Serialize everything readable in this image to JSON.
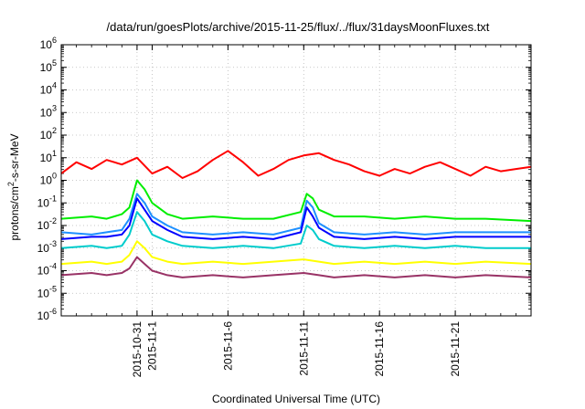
{
  "chart_data": {
    "type": "line",
    "title": "/data/run/goesPlots/archive/2015-11-25/flux/../flux/31daysMoonFluxes.txt",
    "xlabel": "Coordinated Universal Time (UTC)",
    "ylabel": {
      "base": "protons/cm",
      "sup": "2",
      "rest": "-s-sr-MeV"
    },
    "yscale": "log",
    "ylim_exp": [
      -6,
      6
    ],
    "y_ticks": [
      {
        "base": "10",
        "exp": "-6"
      },
      {
        "base": "10",
        "exp": "-5"
      },
      {
        "base": "10",
        "exp": "-4"
      },
      {
        "base": "10",
        "exp": "-3"
      },
      {
        "base": "10",
        "exp": "-2"
      },
      {
        "base": "10",
        "exp": "-1"
      },
      {
        "base": "10",
        "exp": "0"
      },
      {
        "base": "10",
        "exp": "1"
      },
      {
        "base": "10",
        "exp": "2"
      },
      {
        "base": "10",
        "exp": "3"
      },
      {
        "base": "10",
        "exp": "4"
      },
      {
        "base": "10",
        "exp": "5"
      },
      {
        "base": "10",
        "exp": "6"
      }
    ],
    "x_range_days": [
      0,
      31
    ],
    "x_ticks": [
      {
        "day": 5,
        "label": "2015-10-31"
      },
      {
        "day": 6,
        "label": "2015-11-1"
      },
      {
        "day": 11,
        "label": "2015-11-6"
      },
      {
        "day": 16,
        "label": "2015-11-11"
      },
      {
        "day": 21,
        "label": "2015-11-16"
      },
      {
        "day": 26,
        "label": "2015-11-21"
      }
    ],
    "grid": true,
    "series": [
      {
        "name": "red",
        "color": "#ff0000",
        "points": [
          [
            0,
            0.3
          ],
          [
            1,
            0.8
          ],
          [
            2,
            0.5
          ],
          [
            3,
            0.9
          ],
          [
            4,
            0.7
          ],
          [
            5,
            1.0
          ],
          [
            6,
            0.3
          ],
          [
            7,
            0.6
          ],
          [
            8,
            0.1
          ],
          [
            9,
            0.4
          ],
          [
            10,
            0.9
          ],
          [
            11,
            1.3
          ],
          [
            12,
            0.8
          ],
          [
            13,
            0.2
          ],
          [
            14,
            0.5
          ],
          [
            15,
            0.9
          ],
          [
            16,
            1.1
          ],
          [
            17,
            1.2
          ],
          [
            18,
            0.9
          ],
          [
            19,
            0.7
          ],
          [
            20,
            0.4
          ],
          [
            21,
            0.2
          ],
          [
            22,
            0.5
          ],
          [
            23,
            0.3
          ],
          [
            24,
            0.6
          ],
          [
            25,
            0.8
          ],
          [
            26,
            0.5
          ],
          [
            27,
            0.2
          ],
          [
            28,
            0.6
          ],
          [
            29,
            0.4
          ],
          [
            30,
            0.5
          ],
          [
            31,
            0.6
          ]
        ]
      },
      {
        "name": "green",
        "color": "#00ee00",
        "points": [
          [
            0,
            -1.7
          ],
          [
            2,
            -1.6
          ],
          [
            3,
            -1.7
          ],
          [
            4,
            -1.5
          ],
          [
            4.5,
            -1.2
          ],
          [
            5,
            0.0
          ],
          [
            5.5,
            -0.4
          ],
          [
            6,
            -1.0
          ],
          [
            7,
            -1.5
          ],
          [
            8,
            -1.7
          ],
          [
            10,
            -1.6
          ],
          [
            12,
            -1.7
          ],
          [
            14,
            -1.7
          ],
          [
            15.8,
            -1.4
          ],
          [
            16.2,
            -0.6
          ],
          [
            16.6,
            -0.8
          ],
          [
            17,
            -1.3
          ],
          [
            18,
            -1.6
          ],
          [
            20,
            -1.6
          ],
          [
            22,
            -1.7
          ],
          [
            24,
            -1.6
          ],
          [
            26,
            -1.7
          ],
          [
            28,
            -1.7
          ],
          [
            31,
            -1.8
          ]
        ]
      },
      {
        "name": "blue",
        "color": "#0000ff",
        "points": [
          [
            0,
            -2.6
          ],
          [
            2,
            -2.5
          ],
          [
            3,
            -2.5
          ],
          [
            4,
            -2.4
          ],
          [
            4.5,
            -2.0
          ],
          [
            5,
            -0.8
          ],
          [
            5.5,
            -1.3
          ],
          [
            6,
            -1.8
          ],
          [
            7,
            -2.2
          ],
          [
            8,
            -2.5
          ],
          [
            10,
            -2.6
          ],
          [
            12,
            -2.5
          ],
          [
            14,
            -2.6
          ],
          [
            15.8,
            -2.3
          ],
          [
            16.2,
            -1.2
          ],
          [
            16.6,
            -1.6
          ],
          [
            17,
            -2.1
          ],
          [
            18,
            -2.5
          ],
          [
            20,
            -2.6
          ],
          [
            22,
            -2.5
          ],
          [
            24,
            -2.6
          ],
          [
            26,
            -2.5
          ],
          [
            28,
            -2.5
          ],
          [
            31,
            -2.5
          ]
        ]
      },
      {
        "name": "dodgerblue",
        "color": "#1e90ff",
        "points": [
          [
            0,
            -2.3
          ],
          [
            2,
            -2.4
          ],
          [
            3,
            -2.3
          ],
          [
            4,
            -2.2
          ],
          [
            4.5,
            -1.7
          ],
          [
            5,
            -0.6
          ],
          [
            5.5,
            -1.0
          ],
          [
            6,
            -1.6
          ],
          [
            7,
            -2.0
          ],
          [
            8,
            -2.3
          ],
          [
            10,
            -2.4
          ],
          [
            12,
            -2.3
          ],
          [
            14,
            -2.4
          ],
          [
            15.8,
            -2.1
          ],
          [
            16.2,
            -0.9
          ],
          [
            16.6,
            -1.2
          ],
          [
            17,
            -1.9
          ],
          [
            18,
            -2.3
          ],
          [
            20,
            -2.4
          ],
          [
            22,
            -2.3
          ],
          [
            24,
            -2.4
          ],
          [
            26,
            -2.3
          ],
          [
            28,
            -2.3
          ],
          [
            31,
            -2.3
          ]
        ]
      },
      {
        "name": "cyan",
        "color": "#00cccc",
        "points": [
          [
            0,
            -3.0
          ],
          [
            2,
            -2.9
          ],
          [
            3,
            -3.0
          ],
          [
            4,
            -2.9
          ],
          [
            4.5,
            -2.4
          ],
          [
            5,
            -1.4
          ],
          [
            5.5,
            -1.8
          ],
          [
            6,
            -2.4
          ],
          [
            7,
            -2.7
          ],
          [
            8,
            -2.9
          ],
          [
            10,
            -3.0
          ],
          [
            12,
            -2.9
          ],
          [
            14,
            -3.0
          ],
          [
            15.8,
            -2.8
          ],
          [
            16.2,
            -2.0
          ],
          [
            16.6,
            -2.2
          ],
          [
            17,
            -2.6
          ],
          [
            18,
            -2.9
          ],
          [
            20,
            -3.0
          ],
          [
            22,
            -2.9
          ],
          [
            24,
            -3.0
          ],
          [
            26,
            -2.9
          ],
          [
            28,
            -3.0
          ],
          [
            31,
            -3.0
          ]
        ]
      },
      {
        "name": "yellow",
        "color": "#ffff00",
        "points": [
          [
            0,
            -3.7
          ],
          [
            2,
            -3.6
          ],
          [
            3,
            -3.7
          ],
          [
            4,
            -3.6
          ],
          [
            4.5,
            -3.3
          ],
          [
            5,
            -2.7
          ],
          [
            5.5,
            -3.0
          ],
          [
            6,
            -3.4
          ],
          [
            7,
            -3.6
          ],
          [
            8,
            -3.7
          ],
          [
            10,
            -3.6
          ],
          [
            12,
            -3.7
          ],
          [
            14,
            -3.6
          ],
          [
            16,
            -3.5
          ],
          [
            17,
            -3.6
          ],
          [
            18,
            -3.7
          ],
          [
            20,
            -3.6
          ],
          [
            22,
            -3.7
          ],
          [
            24,
            -3.6
          ],
          [
            26,
            -3.7
          ],
          [
            28,
            -3.6
          ],
          [
            31,
            -3.7
          ]
        ]
      },
      {
        "name": "maroon",
        "color": "#993366",
        "points": [
          [
            0,
            -4.2
          ],
          [
            2,
            -4.1
          ],
          [
            3,
            -4.2
          ],
          [
            4,
            -4.1
          ],
          [
            4.5,
            -3.9
          ],
          [
            5,
            -3.4
          ],
          [
            5.5,
            -3.7
          ],
          [
            6,
            -4.0
          ],
          [
            7,
            -4.2
          ],
          [
            8,
            -4.3
          ],
          [
            10,
            -4.2
          ],
          [
            12,
            -4.3
          ],
          [
            14,
            -4.2
          ],
          [
            16,
            -4.1
          ],
          [
            17,
            -4.2
          ],
          [
            18,
            -4.3
          ],
          [
            20,
            -4.2
          ],
          [
            22,
            -4.3
          ],
          [
            24,
            -4.2
          ],
          [
            26,
            -4.3
          ],
          [
            28,
            -4.2
          ],
          [
            31,
            -4.3
          ]
        ]
      }
    ]
  }
}
